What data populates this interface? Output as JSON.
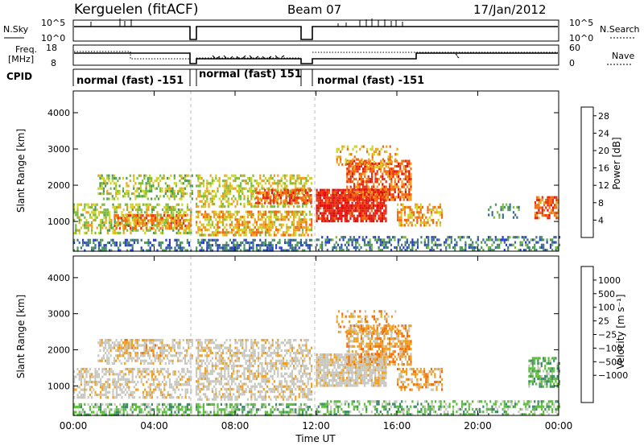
{
  "header": {
    "station": "Kerguelen (fitACF)",
    "beam": "Beam 07",
    "date": "17/Jan/2012"
  },
  "status_panels": {
    "nsky_label": "N.Sky",
    "nsky_ticks": [
      "10^5",
      "10^0"
    ],
    "nsearch_label": "N.Search",
    "nsearch_ticks": [
      "10^5",
      "10^0"
    ],
    "freq_label_1": "Freq.",
    "freq_label_2": "[MHz]",
    "freq_ticks": [
      "18",
      "8"
    ],
    "nave_label": "Nave",
    "nave_ticks": [
      "60",
      "0"
    ],
    "cpid_label": "CPID",
    "cpid_segments": [
      {
        "text": "normal (fast) -151",
        "start_hour": 0.0,
        "end_hour": 5.9
      },
      {
        "text": "normal (fast) 151",
        "start_hour": 5.9,
        "end_hour": 11.8
      },
      {
        "text": "normal (fast) -151",
        "start_hour": 11.8,
        "end_hour": 24.0
      }
    ]
  },
  "chart_data": [
    {
      "type": "heatmap",
      "title": "",
      "xlabel": "Time UT",
      "ylabel": "Slant Range [km]",
      "x_ticks": [
        "00:00",
        "04:00",
        "08:00",
        "12:00",
        "16:00",
        "20:00",
        "00:00"
      ],
      "xlim_hours": [
        0,
        24
      ],
      "y_ticks": [
        "1000",
        "2000",
        "3000",
        "4000"
      ],
      "ylim": [
        180,
        4600
      ],
      "data_gaps_hours": [
        [
          5.85,
          6.05
        ],
        [
          11.75,
          12.0
        ]
      ],
      "colorbar": {
        "label": "Power [dB]",
        "ticks": [
          "4",
          "8",
          "12",
          "16",
          "20",
          "24",
          "28"
        ],
        "range": [
          0,
          30
        ],
        "colors": [
          "#1a1aff",
          "#2a40c8",
          "#3d6e8c",
          "#4f9a58",
          "#7cbe3c",
          "#cfd428",
          "#f0a020",
          "#f06a10",
          "#e83010",
          "#e01010"
        ]
      },
      "regions": [
        {
          "t0": 0.0,
          "t1": 5.85,
          "r0": 200,
          "r1": 520,
          "level": 6,
          "density": 0.5
        },
        {
          "t0": 0.0,
          "t1": 5.85,
          "r0": 700,
          "r1": 1500,
          "level": 14,
          "density": 0.55
        },
        {
          "t0": 2.0,
          "t1": 5.85,
          "r0": 800,
          "r1": 1200,
          "level": 20,
          "density": 0.6
        },
        {
          "t0": 1.2,
          "t1": 5.85,
          "r0": 1600,
          "r1": 2300,
          "level": 13,
          "density": 0.45
        },
        {
          "t0": 6.05,
          "t1": 11.75,
          "r0": 200,
          "r1": 520,
          "level": 6,
          "density": 0.55
        },
        {
          "t0": 6.05,
          "t1": 11.75,
          "r0": 600,
          "r1": 1300,
          "level": 17,
          "density": 0.6
        },
        {
          "t0": 6.05,
          "t1": 11.75,
          "r0": 1400,
          "r1": 2300,
          "level": 15,
          "density": 0.5
        },
        {
          "t0": 9.0,
          "t1": 11.75,
          "r0": 1500,
          "r1": 1900,
          "level": 22,
          "density": 0.7
        },
        {
          "t0": 12.0,
          "t1": 15.5,
          "r0": 1000,
          "r1": 1900,
          "level": 26,
          "density": 0.85
        },
        {
          "t0": 13.5,
          "t1": 16.7,
          "r0": 1600,
          "r1": 2700,
          "level": 22,
          "density": 0.65
        },
        {
          "t0": 13.0,
          "t1": 16.0,
          "r0": 2500,
          "r1": 3100,
          "level": 18,
          "density": 0.3
        },
        {
          "t0": 16.0,
          "t1": 18.2,
          "r0": 900,
          "r1": 1500,
          "level": 18,
          "density": 0.5
        },
        {
          "t0": 12.0,
          "t1": 24.0,
          "r0": 200,
          "r1": 600,
          "level": 7,
          "density": 0.45
        },
        {
          "t0": 20.5,
          "t1": 22.0,
          "r0": 1100,
          "r1": 1500,
          "level": 9,
          "density": 0.3
        },
        {
          "t0": 22.8,
          "t1": 24.0,
          "r0": 1100,
          "r1": 1700,
          "level": 22,
          "density": 0.65
        }
      ]
    },
    {
      "type": "heatmap",
      "title": "",
      "xlabel": "Time UT",
      "ylabel": "Slant Range [km]",
      "x_ticks": [
        "00:00",
        "04:00",
        "08:00",
        "12:00",
        "16:00",
        "20:00",
        "00:00"
      ],
      "xlim_hours": [
        0,
        24
      ],
      "y_ticks": [
        "1000",
        "2000",
        "3000",
        "4000"
      ],
      "ylim": [
        180,
        4600
      ],
      "data_gaps_hours": [
        [
          5.85,
          6.05
        ],
        [
          11.75,
          12.0
        ]
      ],
      "colorbar": {
        "label": "Velocity [m s⁻¹]",
        "ticks": [
          "1000",
          "500",
          "100",
          "25",
          "−25",
          "−100",
          "−500",
          "−1000"
        ],
        "range": [
          -1200,
          1200
        ],
        "colors": [
          "#1a3cc8",
          "#3c6ab0",
          "#3f8a68",
          "#5cbe3c",
          "#c8c8c0",
          "#c8c8c0",
          "#f0a020",
          "#f07010",
          "#e83010",
          "#e01010"
        ]
      },
      "regions": [
        {
          "t0": 0.0,
          "t1": 5.85,
          "r0": 200,
          "r1": 520,
          "level": 3,
          "density": 0.55
        },
        {
          "t0": 0.0,
          "t1": 5.85,
          "r0": 700,
          "r1": 1500,
          "level": 5,
          "density": 0.5
        },
        {
          "t0": 2.0,
          "t1": 4.5,
          "r0": 1800,
          "r1": 2300,
          "level": 6,
          "density": 0.45
        },
        {
          "t0": 1.2,
          "t1": 5.85,
          "r0": 1600,
          "r1": 2300,
          "level": 5,
          "density": 0.45
        },
        {
          "t0": 6.05,
          "t1": 11.75,
          "r0": 200,
          "r1": 520,
          "level": 3,
          "density": 0.55
        },
        {
          "t0": 6.05,
          "t1": 11.75,
          "r0": 600,
          "r1": 2300,
          "level": 5,
          "density": 0.55
        },
        {
          "t0": 12.0,
          "t1": 15.5,
          "r0": 1000,
          "r1": 1900,
          "level": 5,
          "density": 0.85
        },
        {
          "t0": 13.5,
          "t1": 16.7,
          "r0": 1600,
          "r1": 2700,
          "level": 6,
          "density": 0.6
        },
        {
          "t0": 13.0,
          "t1": 16.0,
          "r0": 2500,
          "r1": 3100,
          "level": 6,
          "density": 0.3
        },
        {
          "t0": 16.0,
          "t1": 18.2,
          "r0": 900,
          "r1": 1500,
          "level": 6,
          "density": 0.5
        },
        {
          "t0": 12.0,
          "t1": 24.0,
          "r0": 200,
          "r1": 600,
          "level": 3,
          "density": 0.45
        },
        {
          "t0": 22.5,
          "t1": 24.0,
          "r0": 1000,
          "r1": 1800,
          "level": 3,
          "density": 0.6
        }
      ]
    }
  ]
}
